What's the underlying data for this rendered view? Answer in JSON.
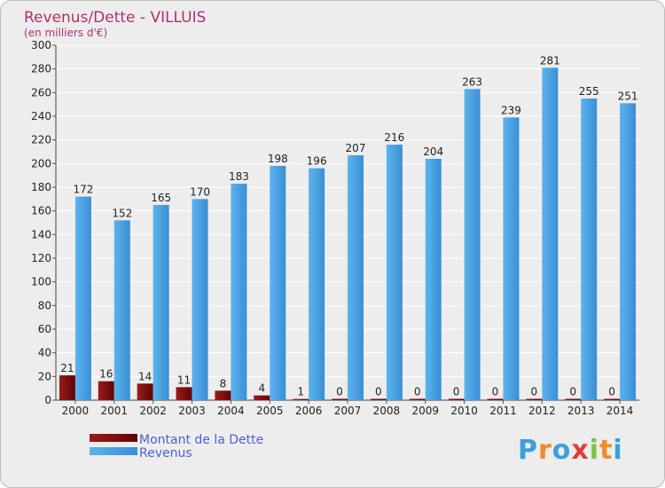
{
  "chart_data": {
    "type": "bar",
    "title": "Revenus/Dette - VILLUIS",
    "subtitle": "(en milliers d'€)",
    "categories": [
      "2000",
      "2001",
      "2002",
      "2003",
      "2004",
      "2005",
      "2006",
      "2007",
      "2008",
      "2009",
      "2010",
      "2011",
      "2012",
      "2013",
      "2014"
    ],
    "series": [
      {
        "name": "Montant de la Dette",
        "color": "#7a0b0b",
        "values": [
          21,
          16,
          14,
          11,
          8,
          4,
          1,
          0,
          0,
          0,
          0,
          0,
          0,
          0,
          0
        ]
      },
      {
        "name": "Revenus",
        "color": "#4aa3e6",
        "values": [
          172,
          152,
          165,
          170,
          183,
          198,
          196,
          207,
          216,
          204,
          263,
          239,
          281,
          255,
          251
        ]
      }
    ],
    "ylim": [
      0,
      300
    ],
    "ytick_step": 20,
    "grid": true,
    "legend": "bottom-left",
    "logo": {
      "letters": [
        "P",
        "r",
        "o",
        "x",
        "i",
        "t",
        "i"
      ],
      "colors": [
        "#3aa0dc",
        "#f08a2a",
        "#3aa0dc",
        "#e23b3b",
        "#7cc242",
        "#f08a2a",
        "#3aa0dc"
      ]
    }
  }
}
